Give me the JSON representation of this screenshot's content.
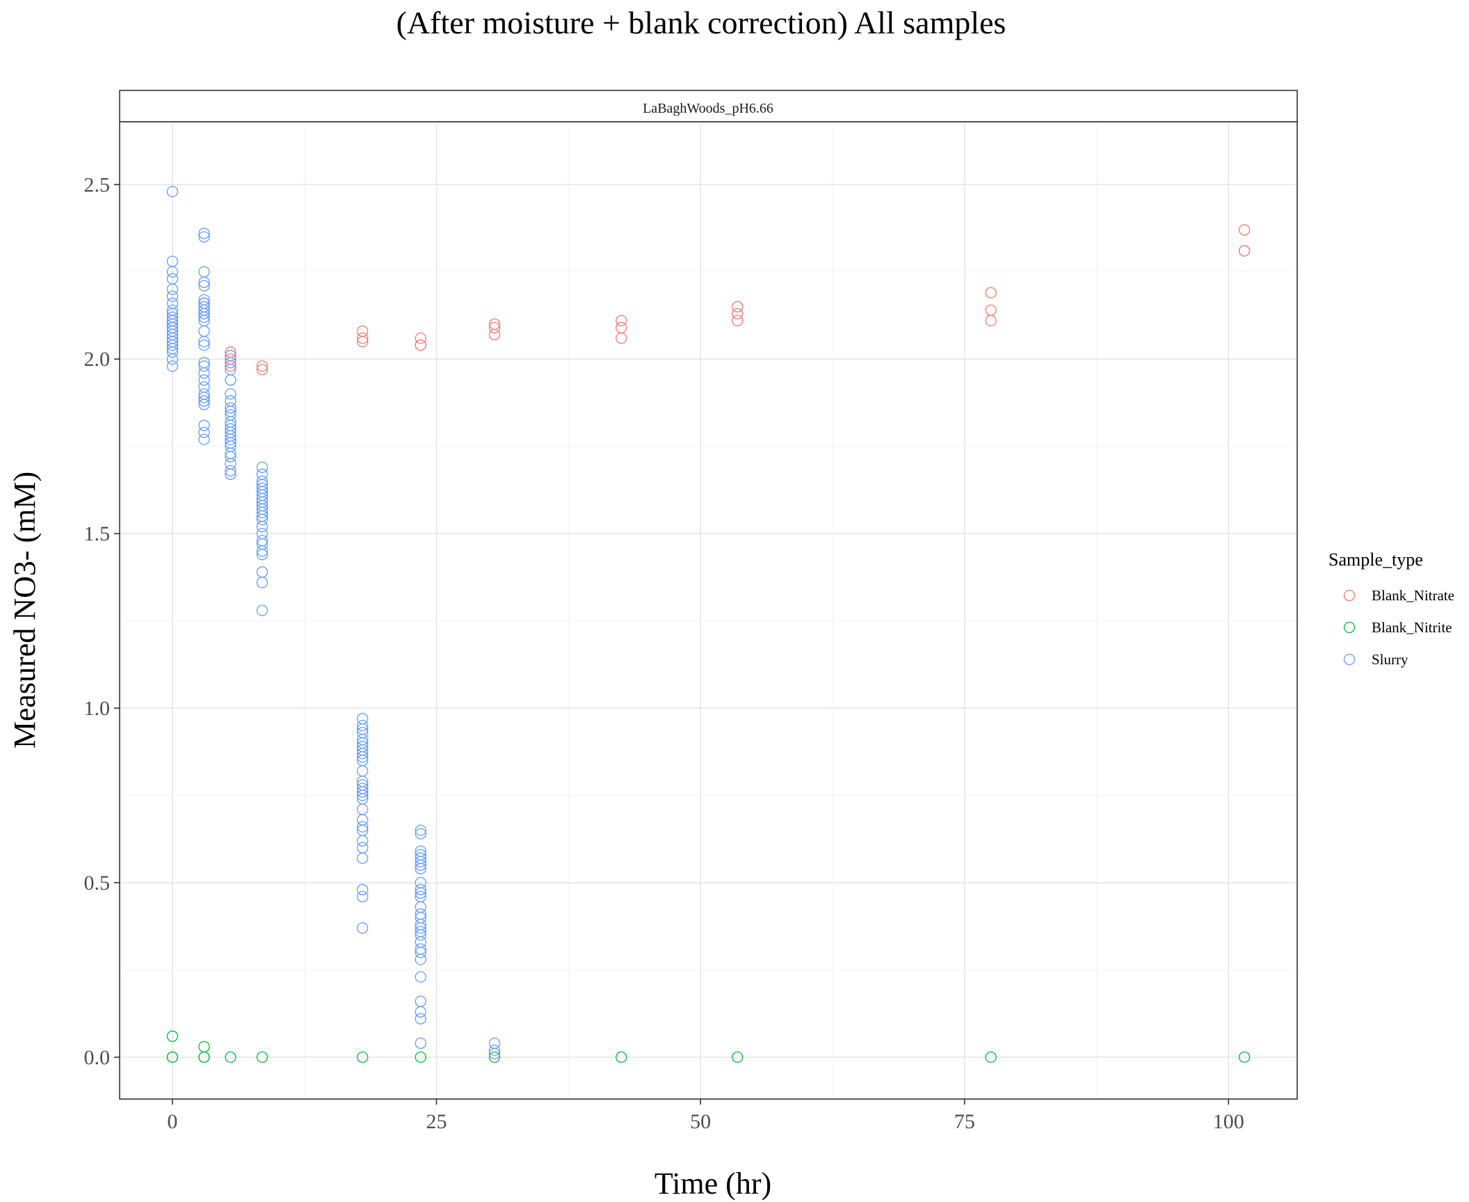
{
  "chart_data": {
    "type": "scatter",
    "title": "(After moisture + blank correction) All samples",
    "facet_label": "LaBaghWoods_pH6.66",
    "xlabel": "Time (hr)",
    "ylabel": "Measured NO3- (mM)",
    "xlim": [
      -5,
      106.5
    ],
    "ylim": [
      -0.12,
      2.68
    ],
    "x_ticks": [
      0,
      25,
      50,
      75,
      100
    ],
    "x_tick_labels": [
      "0",
      "25",
      "50",
      "75",
      "100"
    ],
    "y_ticks": [
      0.0,
      0.5,
      1.0,
      1.5,
      2.0,
      2.5
    ],
    "y_tick_labels": [
      "0.0",
      "0.5",
      "1.0",
      "1.5",
      "2.0",
      "2.5"
    ],
    "grid": true,
    "legend": {
      "title": "Sample_type",
      "placement": "right"
    },
    "series": [
      {
        "name": "Blank_Nitrate",
        "color": "#F8766D",
        "points": [
          [
            0,
            2.05
          ],
          [
            0,
            2.09
          ],
          [
            0,
            2.11
          ],
          [
            3,
            2.13
          ],
          [
            3,
            2.16
          ],
          [
            5.5,
            1.98
          ],
          [
            5.5,
            2.0
          ],
          [
            5.5,
            2.02
          ],
          [
            8.5,
            1.97
          ],
          [
            8.5,
            1.98
          ],
          [
            18,
            2.05
          ],
          [
            18,
            2.06
          ],
          [
            18,
            2.08
          ],
          [
            23.5,
            2.04
          ],
          [
            23.5,
            2.04
          ],
          [
            23.5,
            2.06
          ],
          [
            30.5,
            2.07
          ],
          [
            30.5,
            2.09
          ],
          [
            30.5,
            2.1
          ],
          [
            42.5,
            2.06
          ],
          [
            42.5,
            2.09
          ],
          [
            42.5,
            2.11
          ],
          [
            53.5,
            2.11
          ],
          [
            53.5,
            2.13
          ],
          [
            53.5,
            2.15
          ],
          [
            77.5,
            2.11
          ],
          [
            77.5,
            2.14
          ],
          [
            77.5,
            2.19
          ],
          [
            101.5,
            2.31
          ],
          [
            101.5,
            2.31
          ],
          [
            101.5,
            2.37
          ]
        ]
      },
      {
        "name": "Blank_Nitrite",
        "color": "#00BA38",
        "points": [
          [
            0,
            0.06
          ],
          [
            0,
            0.0
          ],
          [
            0,
            0.0
          ],
          [
            3,
            0.03
          ],
          [
            3,
            0.0
          ],
          [
            3,
            0.0
          ],
          [
            5.5,
            0.0
          ],
          [
            8.5,
            0.0
          ],
          [
            18,
            0.0
          ],
          [
            23.5,
            0.0
          ],
          [
            30.5,
            0.0
          ],
          [
            42.5,
            0.0
          ],
          [
            53.5,
            0.0
          ],
          [
            77.5,
            0.0
          ],
          [
            101.5,
            0.0
          ]
        ]
      },
      {
        "name": "Slurry",
        "color": "#619CFF",
        "points": [
          [
            0,
            2.48
          ],
          [
            0,
            2.28
          ],
          [
            0,
            2.25
          ],
          [
            0,
            2.23
          ],
          [
            0,
            2.2
          ],
          [
            0,
            2.18
          ],
          [
            0,
            2.16
          ],
          [
            0,
            2.14
          ],
          [
            0,
            2.13
          ],
          [
            0,
            2.12
          ],
          [
            0,
            2.11
          ],
          [
            0,
            2.1
          ],
          [
            0,
            2.09
          ],
          [
            0,
            2.08
          ],
          [
            0,
            2.07
          ],
          [
            0,
            2.06
          ],
          [
            0,
            2.05
          ],
          [
            0,
            2.04
          ],
          [
            0,
            2.03
          ],
          [
            0,
            2.02
          ],
          [
            0,
            2.0
          ],
          [
            0,
            1.98
          ],
          [
            3,
            2.36
          ],
          [
            3,
            2.35
          ],
          [
            3,
            2.25
          ],
          [
            3,
            2.22
          ],
          [
            3,
            2.21
          ],
          [
            3,
            2.17
          ],
          [
            3,
            2.16
          ],
          [
            3,
            2.15
          ],
          [
            3,
            2.14
          ],
          [
            3,
            2.13
          ],
          [
            3,
            2.12
          ],
          [
            3,
            2.11
          ],
          [
            3,
            2.08
          ],
          [
            3,
            2.05
          ],
          [
            3,
            2.04
          ],
          [
            3,
            1.99
          ],
          [
            3,
            1.98
          ],
          [
            3,
            1.96
          ],
          [
            3,
            1.94
          ],
          [
            3,
            1.92
          ],
          [
            3,
            1.9
          ],
          [
            3,
            1.89
          ],
          [
            3,
            1.88
          ],
          [
            3,
            1.87
          ],
          [
            3,
            1.81
          ],
          [
            3,
            1.79
          ],
          [
            3,
            1.77
          ],
          [
            5.5,
            2.01
          ],
          [
            5.5,
            1.99
          ],
          [
            5.5,
            1.97
          ],
          [
            5.5,
            1.94
          ],
          [
            5.5,
            1.9
          ],
          [
            5.5,
            1.88
          ],
          [
            5.5,
            1.86
          ],
          [
            5.5,
            1.85
          ],
          [
            5.5,
            1.84
          ],
          [
            5.5,
            1.82
          ],
          [
            5.5,
            1.81
          ],
          [
            5.5,
            1.8
          ],
          [
            5.5,
            1.79
          ],
          [
            5.5,
            1.78
          ],
          [
            5.5,
            1.77
          ],
          [
            5.5,
            1.76
          ],
          [
            5.5,
            1.75
          ],
          [
            5.5,
            1.73
          ],
          [
            5.5,
            1.72
          ],
          [
            5.5,
            1.7
          ],
          [
            5.5,
            1.68
          ],
          [
            5.5,
            1.67
          ],
          [
            8.5,
            1.69
          ],
          [
            8.5,
            1.67
          ],
          [
            8.5,
            1.65
          ],
          [
            8.5,
            1.64
          ],
          [
            8.5,
            1.63
          ],
          [
            8.5,
            1.62
          ],
          [
            8.5,
            1.61
          ],
          [
            8.5,
            1.6
          ],
          [
            8.5,
            1.59
          ],
          [
            8.5,
            1.58
          ],
          [
            8.5,
            1.57
          ],
          [
            8.5,
            1.56
          ],
          [
            8.5,
            1.55
          ],
          [
            8.5,
            1.54
          ],
          [
            8.5,
            1.52
          ],
          [
            8.5,
            1.5
          ],
          [
            8.5,
            1.48
          ],
          [
            8.5,
            1.47
          ],
          [
            8.5,
            1.45
          ],
          [
            8.5,
            1.44
          ],
          [
            8.5,
            1.39
          ],
          [
            8.5,
            1.36
          ],
          [
            8.5,
            1.28
          ],
          [
            18,
            0.97
          ],
          [
            18,
            0.95
          ],
          [
            18,
            0.94
          ],
          [
            18,
            0.93
          ],
          [
            18,
            0.91
          ],
          [
            18,
            0.9
          ],
          [
            18,
            0.89
          ],
          [
            18,
            0.88
          ],
          [
            18,
            0.87
          ],
          [
            18,
            0.86
          ],
          [
            18,
            0.85
          ],
          [
            18,
            0.82
          ],
          [
            18,
            0.79
          ],
          [
            18,
            0.78
          ],
          [
            18,
            0.77
          ],
          [
            18,
            0.76
          ],
          [
            18,
            0.75
          ],
          [
            18,
            0.74
          ],
          [
            18,
            0.71
          ],
          [
            18,
            0.68
          ],
          [
            18,
            0.66
          ],
          [
            18,
            0.65
          ],
          [
            18,
            0.62
          ],
          [
            18,
            0.6
          ],
          [
            18,
            0.57
          ],
          [
            18,
            0.48
          ],
          [
            18,
            0.46
          ],
          [
            18,
            0.37
          ],
          [
            23.5,
            0.65
          ],
          [
            23.5,
            0.64
          ],
          [
            23.5,
            0.59
          ],
          [
            23.5,
            0.58
          ],
          [
            23.5,
            0.57
          ],
          [
            23.5,
            0.56
          ],
          [
            23.5,
            0.55
          ],
          [
            23.5,
            0.54
          ],
          [
            23.5,
            0.5
          ],
          [
            23.5,
            0.48
          ],
          [
            23.5,
            0.47
          ],
          [
            23.5,
            0.46
          ],
          [
            23.5,
            0.43
          ],
          [
            23.5,
            0.41
          ],
          [
            23.5,
            0.4
          ],
          [
            23.5,
            0.38
          ],
          [
            23.5,
            0.37
          ],
          [
            23.5,
            0.36
          ],
          [
            23.5,
            0.35
          ],
          [
            23.5,
            0.33
          ],
          [
            23.5,
            0.31
          ],
          [
            23.5,
            0.3
          ],
          [
            23.5,
            0.28
          ],
          [
            23.5,
            0.23
          ],
          [
            23.5,
            0.16
          ],
          [
            23.5,
            0.13
          ],
          [
            23.5,
            0.11
          ],
          [
            23.5,
            0.04
          ],
          [
            30.5,
            0.04
          ],
          [
            30.5,
            0.02
          ],
          [
            30.5,
            0.01
          ]
        ]
      }
    ]
  }
}
